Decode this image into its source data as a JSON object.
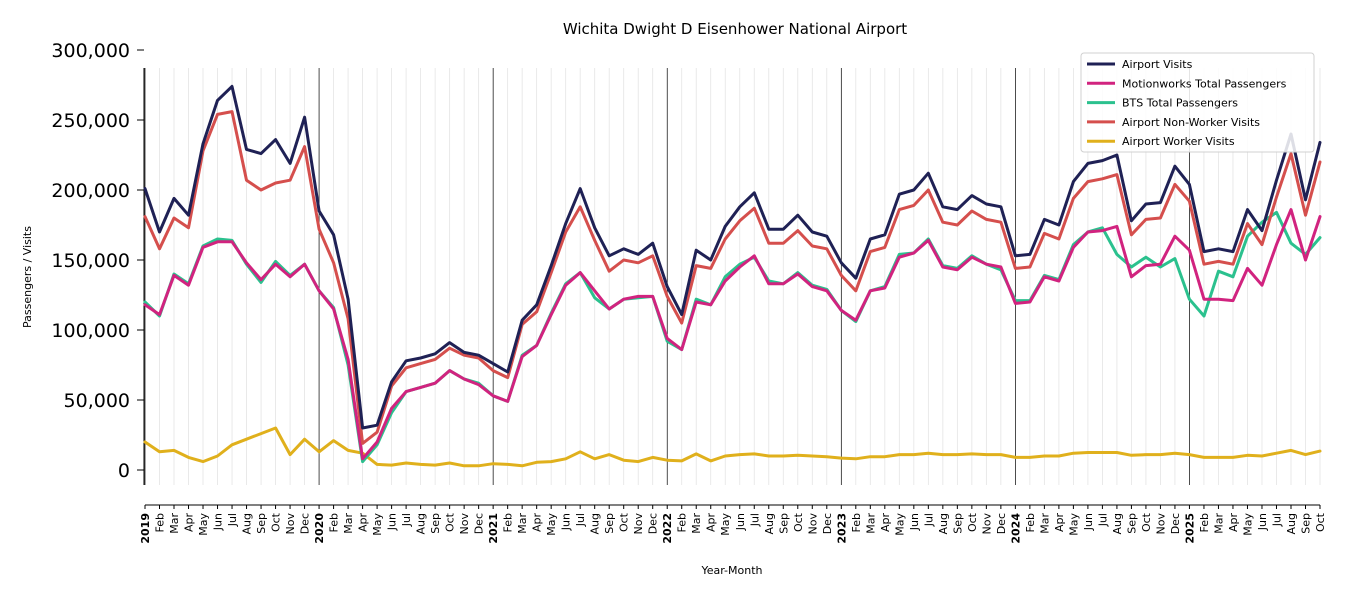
{
  "chart_data": {
    "type": "line",
    "title": "Wichita Dwight D Eisenhower National Airport",
    "xlabel": "Year-Month",
    "ylabel": "Passengers / Visits",
    "ylim": [
      0,
      300000
    ],
    "yticks": [
      "0",
      "50,000",
      "100,000",
      "150,000",
      "200,000",
      "250,000",
      "300,000"
    ],
    "ytick_values": [
      0,
      50000,
      100000,
      150000,
      200000,
      250000,
      300000
    ],
    "legend_position": "top-right",
    "grid": "vertical monthly gridlines, darker line at each January",
    "x": [
      "2019-01",
      "2019-02",
      "2019-03",
      "2019-04",
      "2019-05",
      "2019-06",
      "2019-07",
      "2019-08",
      "2019-09",
      "2019-10",
      "2019-11",
      "2019-12",
      "2020-01",
      "2020-02",
      "2020-03",
      "2020-04",
      "2020-05",
      "2020-06",
      "2020-07",
      "2020-08",
      "2020-09",
      "2020-10",
      "2020-11",
      "2020-12",
      "2021-01",
      "2021-02",
      "2021-03",
      "2021-04",
      "2021-05",
      "2021-06",
      "2021-07",
      "2021-08",
      "2021-09",
      "2021-10",
      "2021-11",
      "2021-12",
      "2022-01",
      "2022-02",
      "2022-03",
      "2022-04",
      "2022-05",
      "2022-06",
      "2022-07",
      "2022-08",
      "2022-09",
      "2022-10",
      "2022-11",
      "2022-12",
      "2023-01",
      "2023-02",
      "2023-03",
      "2023-04",
      "2023-05",
      "2023-06",
      "2023-07",
      "2023-08",
      "2023-09",
      "2023-10",
      "2023-11",
      "2023-12",
      "2024-01",
      "2024-02",
      "2024-03",
      "2024-04",
      "2024-05",
      "2024-06",
      "2024-07",
      "2024-08",
      "2024-09",
      "2024-10",
      "2024-11",
      "2024-12",
      "2025-01",
      "2025-02",
      "2025-03",
      "2025-04",
      "2025-05",
      "2025-06",
      "2025-07",
      "2025-08",
      "2025-09",
      "2025-10"
    ],
    "xtick_labels": [
      "2019",
      "Feb",
      "Mar",
      "Apr",
      "May",
      "Jun",
      "Jul",
      "Aug",
      "Sep",
      "Oct",
      "Nov",
      "Dec",
      "2020",
      "Feb",
      "Mar",
      "Apr",
      "May",
      "Jun",
      "Jul",
      "Aug",
      "Sep",
      "Oct",
      "Nov",
      "Dec",
      "2021",
      "Feb",
      "Mar",
      "Apr",
      "May",
      "Jun",
      "Jul",
      "Aug",
      "Sep",
      "Oct",
      "Nov",
      "Dec",
      "2022",
      "Feb",
      "Mar",
      "Apr",
      "May",
      "Jun",
      "Jul",
      "Aug",
      "Sep",
      "Oct",
      "Nov",
      "Dec",
      "2023",
      "Feb",
      "Mar",
      "Apr",
      "May",
      "Jun",
      "Jul",
      "Aug",
      "Sep",
      "Oct",
      "Nov",
      "Dec",
      "2024",
      "Feb",
      "Mar",
      "Apr",
      "May",
      "Jun",
      "Jul",
      "Aug",
      "Sep",
      "Oct",
      "Nov",
      "Dec",
      "2025",
      "Feb",
      "Mar",
      "Apr",
      "May",
      "Jun",
      "Jul",
      "Aug",
      "Sep",
      "Oct"
    ],
    "series": [
      {
        "name": "Airport Visits",
        "color": "#1f2155",
        "values": [
          201000,
          170000,
          194000,
          182000,
          233000,
          264000,
          274000,
          229000,
          226000,
          236000,
          219000,
          252000,
          185000,
          168000,
          122000,
          30000,
          32000,
          63000,
          78000,
          80000,
          83000,
          91000,
          84000,
          82000,
          76000,
          70000,
          107000,
          118000,
          146000,
          176000,
          201000,
          173000,
          153000,
          158000,
          154000,
          162000,
          131000,
          111000,
          157000,
          150000,
          174000,
          188000,
          198000,
          172000,
          172000,
          182000,
          170000,
          167000,
          148000,
          137000,
          165000,
          168000,
          197000,
          200000,
          212000,
          188000,
          186000,
          196000,
          190000,
          188000,
          153000,
          154000,
          179000,
          175000,
          206000,
          219000,
          221000,
          225000,
          178000,
          190000,
          191000,
          217000,
          204000,
          156000,
          158000,
          156000,
          186000,
          171000,
          207000,
          240000,
          193000,
          234000
        ]
      },
      {
        "name": "Motionworks Total Passengers",
        "color": "#d1237f",
        "values": [
          118000,
          111000,
          139000,
          132000,
          159000,
          163000,
          163000,
          148000,
          136000,
          147000,
          138000,
          147000,
          128000,
          115000,
          79000,
          8000,
          20000,
          44000,
          56000,
          59000,
          62000,
          71000,
          65000,
          61000,
          53000,
          49000,
          81000,
          89000,
          111000,
          132000,
          141000,
          128000,
          115000,
          122000,
          124000,
          124000,
          94000,
          86000,
          120000,
          118000,
          135000,
          145000,
          153000,
          133000,
          133000,
          140000,
          131000,
          128000,
          114000,
          107000,
          128000,
          130000,
          152000,
          155000,
          164000,
          145000,
          143000,
          152000,
          147000,
          145000,
          119000,
          120000,
          138000,
          135000,
          159000,
          170000,
          171000,
          174000,
          138000,
          146000,
          147000,
          167000,
          157000,
          122000,
          122000,
          121000,
          144000,
          132000,
          161000,
          186000,
          150000,
          181000
        ]
      },
      {
        "name": "BTS Total Passengers",
        "color": "#2bc18e",
        "values": [
          120000,
          110000,
          140000,
          133000,
          160000,
          165000,
          164000,
          147000,
          134000,
          149000,
          139000,
          147000,
          128000,
          116000,
          75000,
          6000,
          18000,
          41000,
          56000,
          59000,
          62000,
          71000,
          65000,
          62000,
          53000,
          49000,
          82000,
          89000,
          112000,
          133000,
          141000,
          123000,
          115000,
          122000,
          123000,
          124000,
          92000,
          86000,
          122000,
          118000,
          138000,
          147000,
          152000,
          135000,
          133000,
          141000,
          132000,
          129000,
          114000,
          106000,
          128000,
          131000,
          154000,
          155000,
          165000,
          146000,
          144000,
          153000,
          147000,
          143000,
          121000,
          121000,
          139000,
          136000,
          161000,
          170000,
          173000,
          154000,
          145000,
          152000,
          145000,
          151000,
          122000,
          110000,
          142000,
          138000,
          167000,
          177000,
          184000,
          162000,
          154000,
          166000
        ]
      },
      {
        "name": "Airport Non-Worker Visits",
        "color": "#d54f4d",
        "values": [
          181000,
          158000,
          180000,
          173000,
          228000,
          254000,
          256000,
          207000,
          200000,
          205000,
          207000,
          231000,
          172000,
          148000,
          108000,
          19000,
          27000,
          60000,
          73000,
          76000,
          79000,
          87000,
          82000,
          80000,
          71000,
          66000,
          104000,
          113000,
          141000,
          170000,
          188000,
          164000,
          142000,
          150000,
          148000,
          153000,
          124000,
          105000,
          146000,
          144000,
          165000,
          178000,
          187000,
          162000,
          162000,
          171000,
          160000,
          158000,
          139000,
          128000,
          156000,
          159000,
          186000,
          189000,
          200000,
          177000,
          175000,
          185000,
          179000,
          177000,
          144000,
          145000,
          169000,
          165000,
          194000,
          206000,
          208000,
          211000,
          168000,
          179000,
          180000,
          204000,
          192000,
          147000,
          149000,
          147000,
          176000,
          161000,
          195000,
          226000,
          182000,
          220000
        ]
      },
      {
        "name": "Airport Worker Visits",
        "color": "#e0b01c",
        "values": [
          20000,
          13000,
          14000,
          9000,
          6000,
          10000,
          18000,
          22000,
          26000,
          30000,
          11000,
          22000,
          13000,
          21000,
          14000,
          12000,
          4000,
          3500,
          5000,
          4000,
          3500,
          5000,
          3000,
          3000,
          4500,
          4000,
          3000,
          5500,
          6000,
          8000,
          13000,
          8000,
          11000,
          7000,
          6000,
          9000,
          7000,
          6500,
          11500,
          6500,
          10000,
          11000,
          11500,
          10000,
          10000,
          10500,
          10000,
          9500,
          8500,
          8000,
          9500,
          9500,
          11000,
          11000,
          12000,
          11000,
          11000,
          11500,
          11000,
          11000,
          9000,
          9000,
          10000,
          10000,
          12000,
          12500,
          12500,
          12500,
          10500,
          11000,
          11000,
          12000,
          11000,
          9000,
          9000,
          9000,
          10500,
          10000,
          12000,
          14000,
          11000,
          13500
        ]
      }
    ]
  }
}
